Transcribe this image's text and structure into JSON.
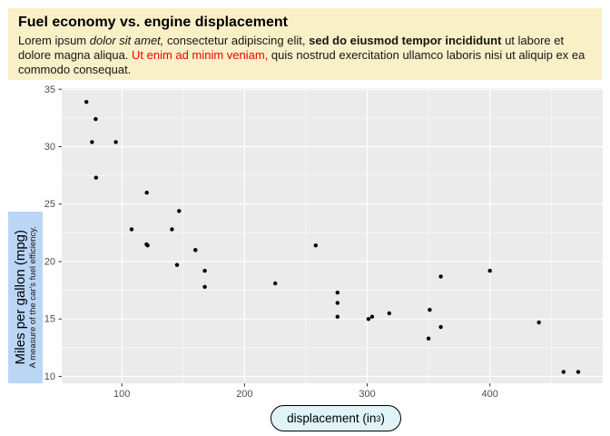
{
  "header": {
    "title": "Fuel economy vs. engine displacement",
    "body_segments": [
      {
        "text": "Lorem ipsum ",
        "style": "normal"
      },
      {
        "text": "dolor sit amet,",
        "style": "italic"
      },
      {
        "text": " consectetur adipiscing elit, ",
        "style": "normal"
      },
      {
        "text": "sed do eiusmod tempor incididunt",
        "style": "bold"
      },
      {
        "text": " ut labore et dolore magna aliqua. ",
        "style": "normal"
      },
      {
        "text": "Ut enim ad minim veniam,",
        "style": "red"
      },
      {
        "text": " quis nostrud exercitation ullamco laboris nisi ut aliquip ex ea commodo consequat.",
        "style": "normal"
      }
    ]
  },
  "chart_data": {
    "type": "scatter",
    "title": "",
    "xlabel_prefix": "displacement (in",
    "xlabel_sup": "3",
    "xlabel_suffix": ")",
    "ylabel": "Miles per gallon (mpg)",
    "ylabel_sub": "A measure of the car's fuel efficiency.",
    "xlim": [
      51,
      492
    ],
    "ylim": [
      9.4,
      35.1
    ],
    "x_ticks": [
      100,
      200,
      300,
      400
    ],
    "y_ticks": [
      10,
      15,
      20,
      25,
      30,
      35
    ],
    "x_minor": [
      150,
      250,
      350,
      450
    ],
    "y_minor": [
      12.5,
      17.5,
      22.5,
      27.5,
      32.5
    ],
    "grid": true,
    "legend": "none",
    "points_disp_mpg": [
      [
        160.0,
        21.0
      ],
      [
        160.0,
        21.0
      ],
      [
        108.0,
        22.8
      ],
      [
        258.0,
        21.4
      ],
      [
        360.0,
        18.7
      ],
      [
        225.0,
        18.1
      ],
      [
        360.0,
        14.3
      ],
      [
        146.7,
        24.4
      ],
      [
        140.8,
        22.8
      ],
      [
        167.6,
        19.2
      ],
      [
        167.6,
        17.8
      ],
      [
        275.8,
        16.4
      ],
      [
        275.8,
        17.3
      ],
      [
        275.8,
        15.2
      ],
      [
        472.0,
        10.4
      ],
      [
        460.0,
        10.4
      ],
      [
        440.0,
        14.7
      ],
      [
        78.7,
        32.4
      ],
      [
        75.7,
        30.4
      ],
      [
        71.1,
        33.9
      ],
      [
        120.1,
        21.5
      ],
      [
        318.0,
        15.5
      ],
      [
        304.0,
        15.2
      ],
      [
        350.0,
        13.3
      ],
      [
        400.0,
        19.2
      ],
      [
        79.0,
        27.3
      ],
      [
        120.3,
        26.0
      ],
      [
        95.1,
        30.4
      ],
      [
        351.0,
        15.8
      ],
      [
        145.0,
        19.7
      ],
      [
        301.0,
        15.0
      ],
      [
        121.0,
        21.4
      ]
    ]
  },
  "colors": {
    "page_bg": "#FFFFFF",
    "header_bg": "#FAF0C8",
    "red_text": "#EE0000",
    "panel_bg": "#EBEBEB",
    "grid": "#FFFFFF",
    "point": "#000000",
    "tick_label": "#4D4D4D",
    "tick_mark": "#333333",
    "y_label_box_bg": "#BBD5F5",
    "x_label_pill_bg": "#E0F4F8"
  }
}
